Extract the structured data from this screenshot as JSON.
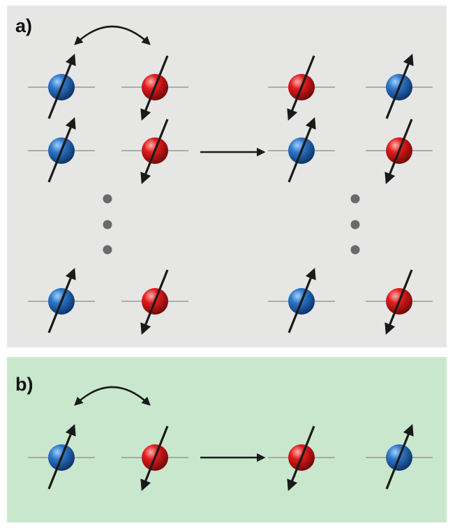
{
  "panels": [
    {
      "label": "a)",
      "background": "#e6e6e5",
      "before": {
        "rows": [
          {
            "left": {
              "color": "blue",
              "spin": "up"
            },
            "right": {
              "color": "red",
              "spin": "down"
            }
          },
          {
            "left": {
              "color": "blue",
              "spin": "up"
            },
            "right": {
              "color": "red",
              "spin": "down"
            }
          },
          {
            "left": {
              "color": "blue",
              "spin": "up"
            },
            "right": {
              "color": "red",
              "spin": "down"
            }
          }
        ]
      },
      "after": {
        "rows": [
          {
            "left": {
              "color": "red",
              "spin": "down"
            },
            "right": {
              "color": "blue",
              "spin": "up"
            }
          },
          {
            "left": {
              "color": "blue",
              "spin": "up"
            },
            "right": {
              "color": "red",
              "spin": "down"
            }
          },
          {
            "left": {
              "color": "blue",
              "spin": "up"
            },
            "right": {
              "color": "red",
              "spin": "down"
            }
          }
        ]
      },
      "ellipsis": "vertical-dots"
    },
    {
      "label": "b)",
      "background": "#c9e7cc",
      "before": {
        "rows": [
          {
            "left": {
              "color": "blue",
              "spin": "up"
            },
            "right": {
              "color": "red",
              "spin": "down"
            }
          }
        ]
      },
      "after": {
        "rows": [
          {
            "left": {
              "color": "red",
              "spin": "down"
            },
            "right": {
              "color": "blue",
              "spin": "up"
            }
          }
        ]
      }
    }
  ],
  "colors": {
    "blue": "#1a5fae",
    "red": "#d81818",
    "arrow": "#1a1a1a",
    "dots": "#6a6a6a",
    "line": "#8a8a8a"
  },
  "icons": [
    "swap-arc-icon",
    "transition-arrow-icon",
    "spin-arrow-icon",
    "ellipsis-dots-icon"
  ]
}
